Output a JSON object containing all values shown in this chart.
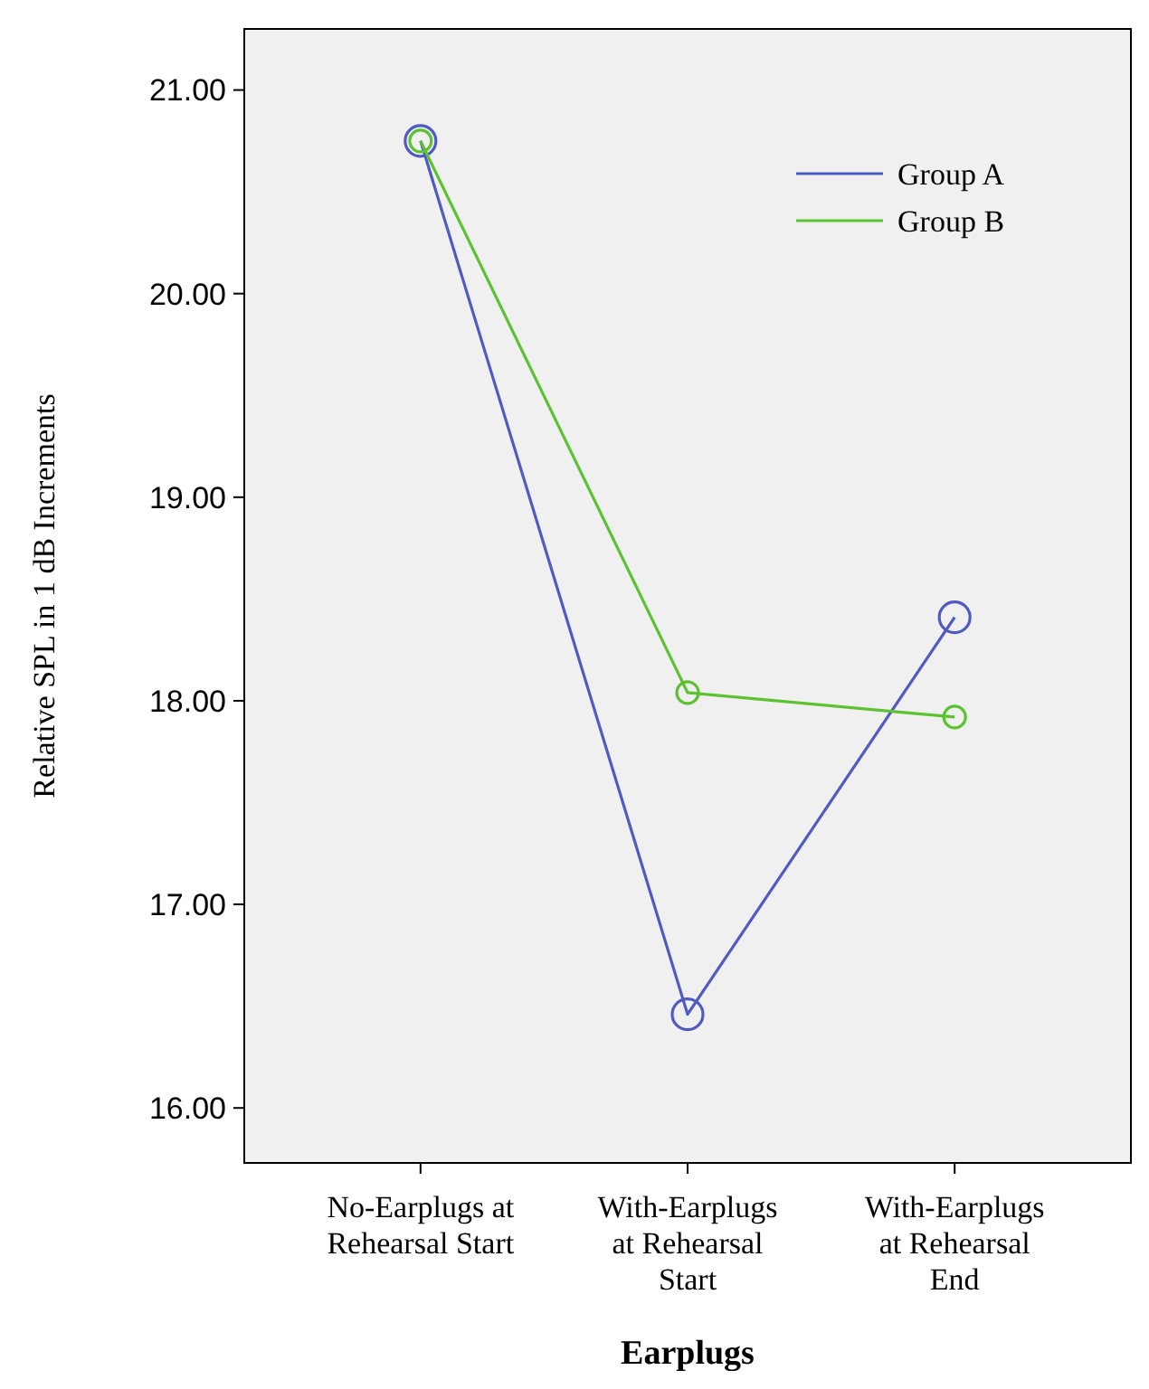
{
  "chart_data": {
    "type": "line",
    "xlabel": "Earplugs",
    "ylabel": "Relative SPL in 1 dB Increments",
    "categories": [
      "No-Earplugs at Rehearsal Start",
      "With-Earplugs at Rehearsal Start",
      "With-Earplugs at Rehearsal End"
    ],
    "series": [
      {
        "name": "Group A",
        "color": "#4f5bc0",
        "values": [
          20.75,
          16.46,
          18.41
        ]
      },
      {
        "name": "Group B",
        "color": "#5cc232",
        "values": [
          20.75,
          18.04,
          17.92
        ]
      }
    ],
    "ylim": [
      15.73,
      21.3
    ],
    "yticks": [
      {
        "value": 16,
        "label": "16.00"
      },
      {
        "value": 17,
        "label": "17.00"
      },
      {
        "value": 18,
        "label": "18.00"
      },
      {
        "value": 19,
        "label": "19.00"
      },
      {
        "value": 20,
        "label": "20.00"
      },
      {
        "value": 21,
        "label": "21.00"
      }
    ],
    "marker": "circle",
    "legend": "top right",
    "grid": false
  }
}
